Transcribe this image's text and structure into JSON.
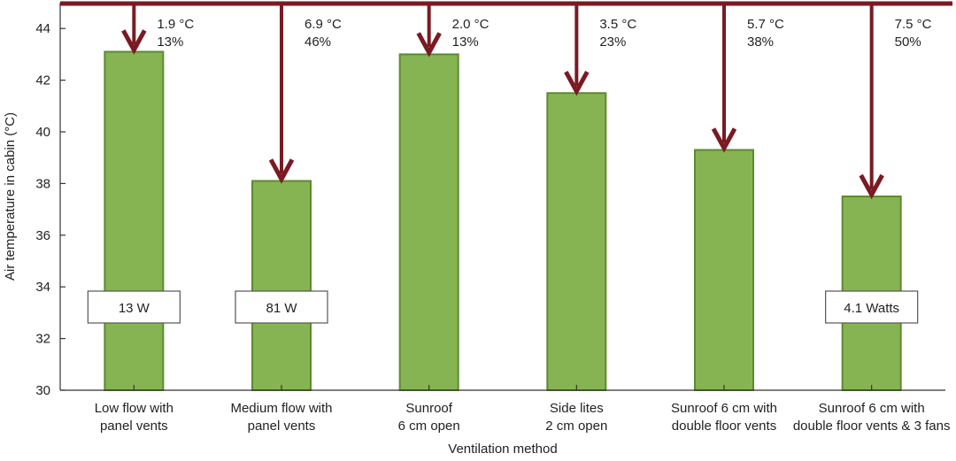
{
  "chart_data": {
    "type": "bar",
    "xlabel": "Ventilation method",
    "ylabel": "Air temperature in cabin (°C)",
    "ylim": [
      30,
      45
    ],
    "yticks": [
      30,
      32,
      34,
      36,
      38,
      40,
      42,
      44
    ],
    "grid": false,
    "categories": [
      [
        "Low flow with",
        "panel vents"
      ],
      [
        "Medium flow with",
        "panel vents"
      ],
      [
        "Sunroof",
        "6 cm open"
      ],
      [
        "Side lites",
        "2 cm open"
      ],
      [
        "Sunroof 6 cm with",
        "double floor vents"
      ],
      [
        "Sunroof 6 cm with",
        "double floor vents & 3 fans"
      ]
    ],
    "values": [
      43.1,
      38.1,
      43.0,
      41.5,
      39.3,
      37.5
    ],
    "baseline": 45.0,
    "reductions": [
      [
        "1.9 °C",
        "13%"
      ],
      [
        "6.9 °C",
        "46%"
      ],
      [
        "2.0 °C",
        "13%"
      ],
      [
        "3.5 °C",
        "23%"
      ],
      [
        "5.7 °C",
        "38%"
      ],
      [
        "7.5 °C",
        "50%"
      ]
    ],
    "power_labels": [
      "13 W",
      "81 W",
      "",
      "",
      "",
      "4.1 Watts"
    ],
    "colors": {
      "bar": "#86b453",
      "bar_edge": "#5d8a30",
      "arrow": "#7a1a22"
    }
  }
}
